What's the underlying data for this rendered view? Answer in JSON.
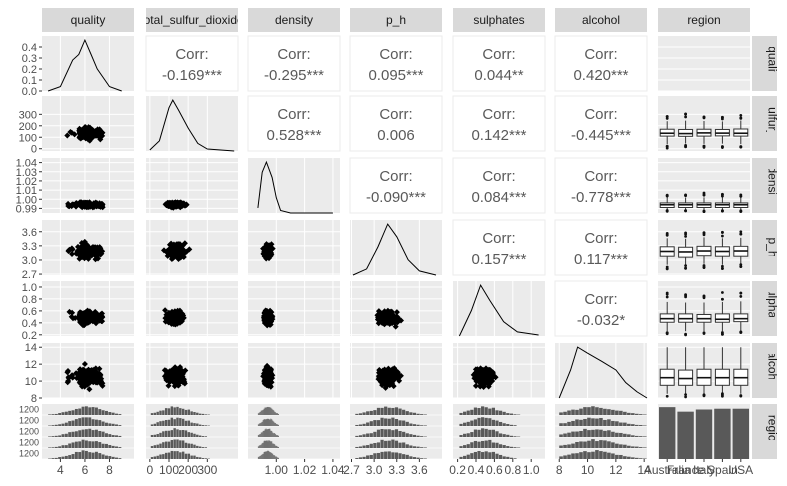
{
  "chart_data": {
    "type": "scatterplot-matrix",
    "variables": [
      "quality",
      "total_sulfur_dioxide",
      "density",
      "p_h",
      "sulphates",
      "alcohol",
      "region"
    ],
    "column_strip_labels": [
      "quality",
      "total_sulfur_dioxide",
      "density",
      "p_h",
      "sulphates",
      "alcohol",
      "region"
    ],
    "row_strip_labels": [
      "quality",
      "total_sulfur_dioxide",
      "density",
      "p_h",
      "sulphates",
      "alcohol",
      "region"
    ],
    "corr_label": "Corr:",
    "correlations": [
      {
        "row": "quality",
        "col": "total_sulfur_dioxide",
        "value": "-0.169***"
      },
      {
        "row": "quality",
        "col": "density",
        "value": "-0.295***"
      },
      {
        "row": "quality",
        "col": "p_h",
        "value": "0.095***"
      },
      {
        "row": "quality",
        "col": "sulphates",
        "value": "0.044**"
      },
      {
        "row": "quality",
        "col": "alcohol",
        "value": "0.420***"
      },
      {
        "row": "total_sulfur_dioxide",
        "col": "density",
        "value": "0.528***"
      },
      {
        "row": "total_sulfur_dioxide",
        "col": "p_h",
        "value": "0.006"
      },
      {
        "row": "total_sulfur_dioxide",
        "col": "sulphates",
        "value": "0.142***"
      },
      {
        "row": "total_sulfur_dioxide",
        "col": "alcohol",
        "value": "-0.445***"
      },
      {
        "row": "density",
        "col": "p_h",
        "value": "-0.090***"
      },
      {
        "row": "density",
        "col": "sulphates",
        "value": "0.084***"
      },
      {
        "row": "density",
        "col": "alcohol",
        "value": "-0.778***"
      },
      {
        "row": "p_h",
        "col": "sulphates",
        "value": "0.157***"
      },
      {
        "row": "p_h",
        "col": "alcohol",
        "value": "0.117***"
      },
      {
        "row": "sulphates",
        "col": "alcohol",
        "value": "-0.032*"
      }
    ],
    "x_axes": {
      "quality": {
        "range": [
          2.5,
          10
        ],
        "ticks": [
          4,
          6,
          8
        ]
      },
      "total_sulfur_dioxide": {
        "range": [
          -20,
          460
        ],
        "ticks": [
          0,
          100,
          200,
          300
        ]
      },
      "density": {
        "range": [
          0.98,
          1.045
        ],
        "ticks": [
          1.0,
          1.02,
          1.04
        ],
        "tick_labels": [
          "1.00",
          "1.02",
          "1.04"
        ]
      },
      "p_h": {
        "range": [
          2.68,
          3.9
        ],
        "ticks": [
          2.7,
          3.0,
          3.3,
          3.6
        ],
        "tick_labels": [
          "2.7",
          "3.0",
          "3.3",
          "3.6"
        ]
      },
      "sulphates": {
        "range": [
          0.15,
          1.15
        ],
        "ticks": [
          0.2,
          0.4,
          0.6,
          0.8,
          1.0
        ],
        "tick_labels": [
          "0.2",
          "0.4",
          "0.6",
          "0.8",
          "1.0"
        ]
      },
      "alcohol": {
        "range": [
          7.7,
          14.2
        ],
        "ticks": [
          8,
          10,
          12,
          14
        ]
      },
      "region": {
        "categories": [
          "Australia",
          "France",
          "Italy",
          "Spain",
          "USA"
        ],
        "tick_labels": [
          "Australia",
          "France",
          "Italy",
          "Spain",
          "USA"
        ]
      }
    },
    "y_axes": {
      "quality": {
        "range": [
          0,
          0.5
        ],
        "ticks": [
          0,
          0.1,
          0.2,
          0.3,
          0.4
        ],
        "tick_labels": [
          "0.0",
          "0.1",
          "0.2",
          "0.3",
          "0.4"
        ]
      },
      "total_sulfur_dioxide": {
        "range": [
          -20,
          460
        ],
        "ticks": [
          0,
          100,
          200,
          300
        ]
      },
      "density": {
        "range": [
          0.985,
          1.045
        ],
        "ticks": [
          0.99,
          1.0,
          1.01,
          1.02,
          1.03,
          1.04
        ],
        "tick_labels": [
          "0.99",
          "1.00",
          "1.01",
          "1.02",
          "1.03",
          "1.04"
        ]
      },
      "p_h": {
        "range": [
          2.68,
          3.85
        ],
        "ticks": [
          2.7,
          3.0,
          3.3,
          3.6
        ],
        "tick_labels": [
          "2.7",
          "3.0",
          "3.3",
          "3.6"
        ]
      },
      "sulphates": {
        "range": [
          0.18,
          1.1
        ],
        "ticks": [
          0.2,
          0.4,
          0.6,
          0.8,
          1.0
        ],
        "tick_labels": [
          "0.2",
          "0.4",
          "0.6",
          "0.8",
          "1.0"
        ]
      },
      "alcohol": {
        "range": [
          8,
          14.5
        ],
        "ticks": [
          8,
          10,
          12,
          14
        ]
      },
      "region": {
        "tick_labels": [
          "1200",
          "1200",
          "1200",
          "1200",
          "1200"
        ]
      }
    },
    "density_curves": {
      "quality": [
        [
          3,
          0.0
        ],
        [
          4,
          0.04
        ],
        [
          5,
          0.28
        ],
        [
          5.5,
          0.33
        ],
        [
          6,
          0.46
        ],
        [
          6.5,
          0.33
        ],
        [
          7,
          0.2
        ],
        [
          8,
          0.04
        ],
        [
          9,
          0.0
        ]
      ],
      "total_sulfur_dioxide": [
        [
          0,
          0.02
        ],
        [
          50,
          0.2
        ],
        [
          100,
          0.85
        ],
        [
          120,
          1.0
        ],
        [
          150,
          0.8
        ],
        [
          200,
          0.45
        ],
        [
          250,
          0.15
        ],
        [
          300,
          0.04
        ],
        [
          440,
          0.0
        ]
      ],
      "density": [
        [
          0.987,
          0.1
        ],
        [
          0.99,
          0.8
        ],
        [
          0.993,
          1.0
        ],
        [
          0.997,
          0.7
        ],
        [
          1.0,
          0.3
        ],
        [
          1.003,
          0.05
        ],
        [
          1.01,
          0.0
        ],
        [
          1.04,
          0.0
        ]
      ],
      "p_h": [
        [
          2.72,
          0.0
        ],
        [
          2.9,
          0.12
        ],
        [
          3.05,
          0.55
        ],
        [
          3.18,
          1.0
        ],
        [
          3.3,
          0.75
        ],
        [
          3.45,
          0.3
        ],
        [
          3.6,
          0.08
        ],
        [
          3.82,
          0.0
        ]
      ],
      "sulphates": [
        [
          0.22,
          0.0
        ],
        [
          0.35,
          0.5
        ],
        [
          0.45,
          1.0
        ],
        [
          0.55,
          0.7
        ],
        [
          0.7,
          0.28
        ],
        [
          0.85,
          0.08
        ],
        [
          1.08,
          0.02
        ]
      ],
      "alcohol": [
        [
          8.0,
          0.0
        ],
        [
          8.8,
          0.55
        ],
        [
          9.3,
          1.0
        ],
        [
          10.0,
          0.88
        ],
        [
          11.0,
          0.72
        ],
        [
          12.0,
          0.55
        ],
        [
          12.7,
          0.3
        ],
        [
          13.5,
          0.12
        ],
        [
          14.2,
          0.0
        ]
      ]
    },
    "region_counts": [
      {
        "region": "Australia",
        "count": 1320
      },
      {
        "region": "France",
        "count": 1205
      },
      {
        "region": "Italy",
        "count": 1260
      },
      {
        "region": "Spain",
        "count": 1280
      },
      {
        "region": "USA",
        "count": 1280
      }
    ],
    "region_bar_ylim": [
      0,
      1400
    ],
    "boxplots": {
      "quality": [
        [
          5,
          5.8,
          6,
          6.6,
          7.6
        ],
        [
          5,
          5.7,
          6,
          6.5,
          7.5
        ],
        [
          5,
          5.8,
          6,
          6.6,
          7.6
        ],
        [
          5,
          5.8,
          6,
          6.4,
          7.5
        ],
        [
          5,
          5.9,
          6,
          6.6,
          7.7
        ]
      ],
      "total_sulfur_dioxide": [
        [
          40,
          110,
          135,
          170,
          240
        ],
        [
          45,
          108,
          132,
          168,
          245
        ],
        [
          42,
          110,
          138,
          170,
          242
        ],
        [
          44,
          112,
          136,
          168,
          238
        ],
        [
          40,
          110,
          135,
          172,
          246
        ]
      ],
      "density": [
        [
          0.988,
          0.991,
          0.994,
          0.996,
          1.002
        ],
        [
          0.988,
          0.991,
          0.994,
          0.996,
          1.002
        ],
        [
          0.988,
          0.991,
          0.994,
          0.996,
          1.002
        ],
        [
          0.988,
          0.991,
          0.994,
          0.996,
          1.002
        ],
        [
          0.988,
          0.991,
          0.994,
          0.996,
          1.002
        ]
      ],
      "p_h": [
        [
          2.9,
          3.08,
          3.18,
          3.28,
          3.46
        ],
        [
          2.9,
          3.06,
          3.17,
          3.27,
          3.45
        ],
        [
          2.92,
          3.09,
          3.19,
          3.29,
          3.48
        ],
        [
          2.9,
          3.08,
          3.18,
          3.28,
          3.46
        ],
        [
          2.92,
          3.08,
          3.19,
          3.29,
          3.47
        ]
      ],
      "sulphates": [
        [
          0.26,
          0.41,
          0.47,
          0.55,
          0.75
        ],
        [
          0.26,
          0.41,
          0.47,
          0.55,
          0.74
        ],
        [
          0.26,
          0.41,
          0.47,
          0.54,
          0.74
        ],
        [
          0.26,
          0.41,
          0.46,
          0.55,
          0.75
        ],
        [
          0.27,
          0.42,
          0.47,
          0.55,
          0.76
        ]
      ],
      "alcohol": [
        [
          8.5,
          9.5,
          10.4,
          11.4,
          14.0
        ],
        [
          8.5,
          9.5,
          10.3,
          11.3,
          14.0
        ],
        [
          8.5,
          9.5,
          10.4,
          11.4,
          14.0
        ],
        [
          8.6,
          9.5,
          10.4,
          11.4,
          14.0
        ],
        [
          8.5,
          9.5,
          10.4,
          11.4,
          14.0
        ]
      ]
    },
    "colors": {
      "panel_background": "#ebebeb",
      "grid": "#ffffff",
      "strip_background": "#d9d9d9",
      "corr_text": "#595959",
      "points": "#000000",
      "bars": "#595959",
      "axis_text": "#4d4d4d"
    }
  }
}
